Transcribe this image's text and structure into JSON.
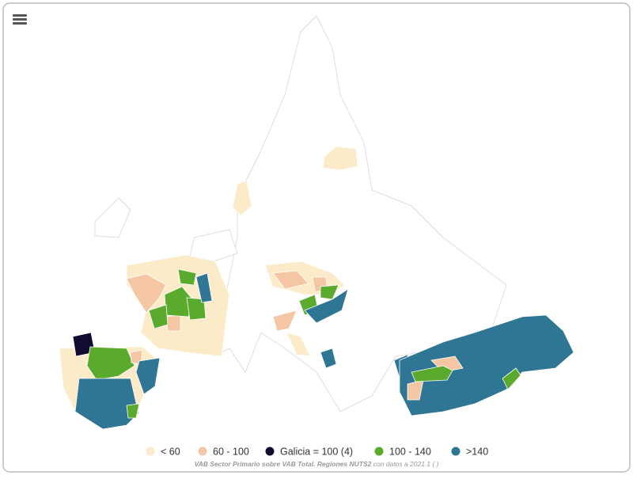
{
  "legend": {
    "items": [
      {
        "label": "< 60",
        "color": "#fcebc9"
      },
      {
        "label": "60 - 100",
        "color": "#f5c6a3"
      },
      {
        "label": "Galicia = 100 (4)",
        "color": "#100b2f"
      },
      {
        "label": "100 - 140",
        "color": "#5aab2d"
      },
      {
        "label": ">140",
        "color": "#2f7594"
      }
    ]
  },
  "caption": {
    "title": "VAB Sector Primario sobre VAB Total. Regiones NUTS2",
    "note": "con datos a 2021 1 ( )"
  }
}
